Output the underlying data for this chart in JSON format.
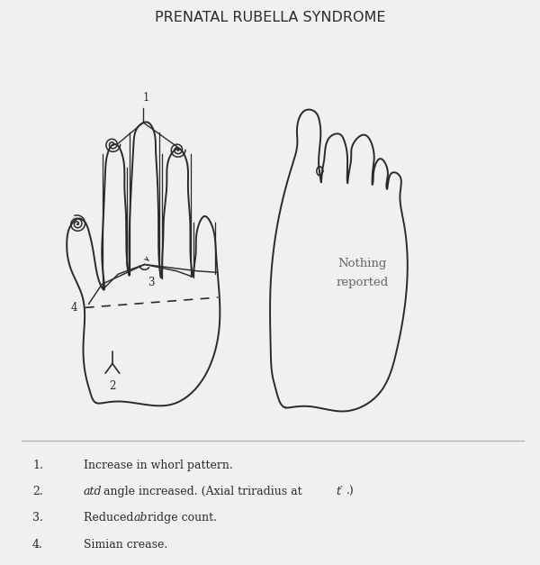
{
  "title": "PRENATAL RUBELLA SYNDROME",
  "title_fontsize": 11.5,
  "bg_color": "#f0f0f0",
  "line_color": "#2a2a2a",
  "nothing_reported": "Nothing\nreported",
  "label_1": "1",
  "label_2": "2",
  "label_3": "3",
  "label_4": "4",
  "legend": [
    {
      "num": "1.",
      "parts": [
        {
          "t": "Increase in whorl pattern.",
          "i": false
        }
      ]
    },
    {
      "num": "2.",
      "parts": [
        {
          "t": "atd",
          "i": true
        },
        {
          "t": " angle increased. (Axial triradius at ",
          "i": false
        },
        {
          "t": "t′",
          "i": true
        },
        {
          "t": ".)",
          "i": false
        }
      ]
    },
    {
      "num": "3.",
      "parts": [
        {
          "t": "Reduced ",
          "i": false
        },
        {
          "t": "ab",
          "i": true
        },
        {
          "t": " ridge count.",
          "i": false
        }
      ]
    },
    {
      "num": "4.",
      "parts": [
        {
          "t": "Simian crease.",
          "i": false
        }
      ]
    }
  ]
}
